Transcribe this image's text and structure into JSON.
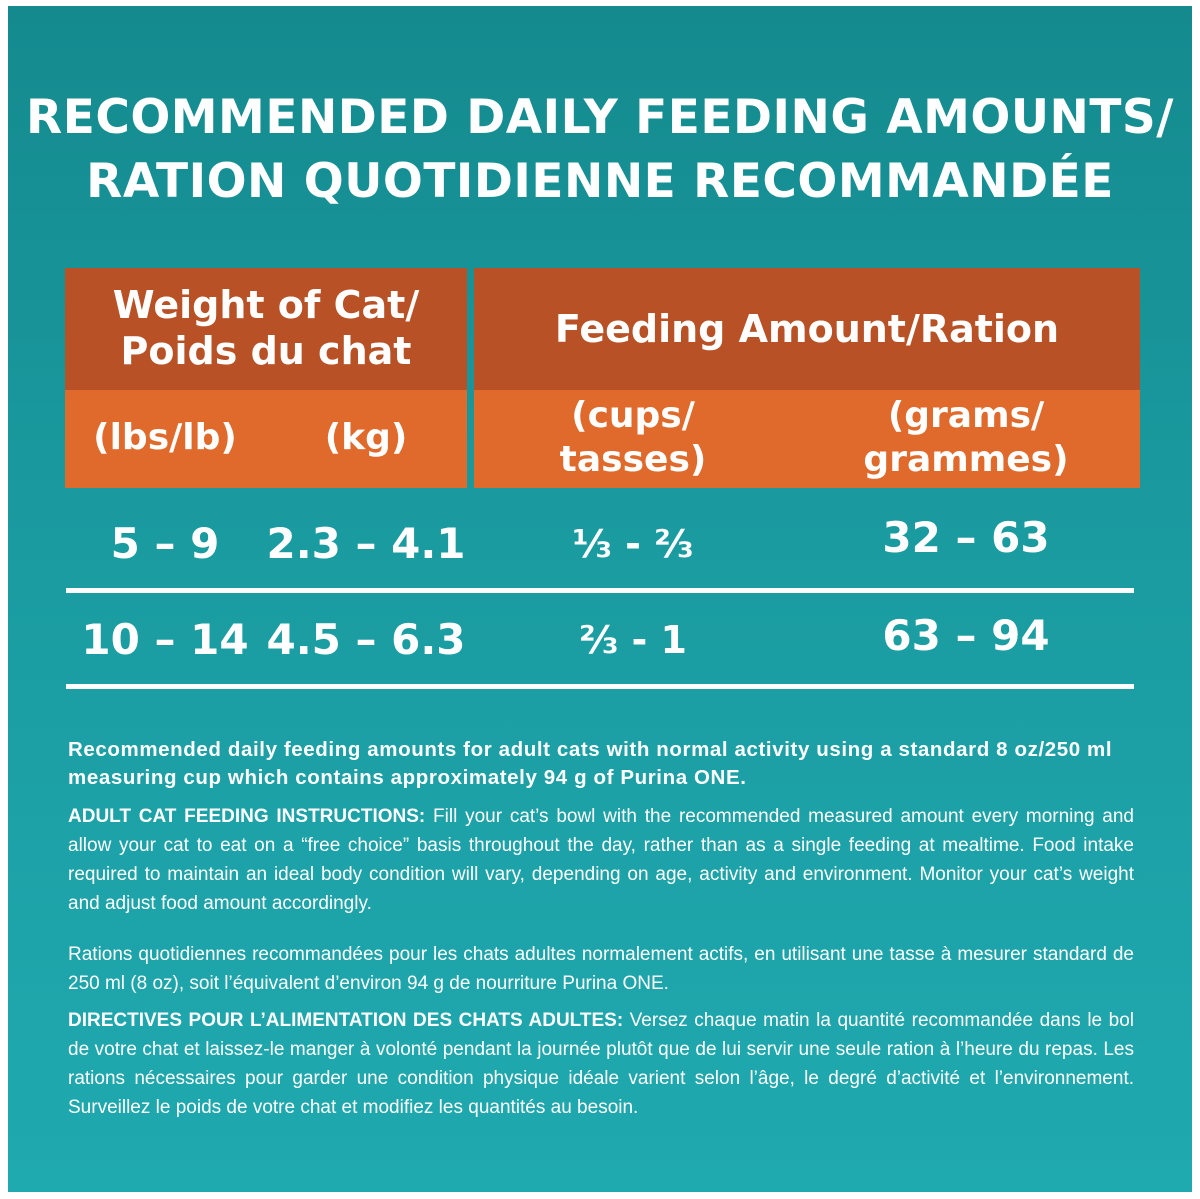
{
  "title": {
    "line1": "RECOMMENDED DAILY FEEDING AMOUNTS/",
    "line2": "RATION QUOTIDIENNE RECOMMANDÉE"
  },
  "table": {
    "weight_header": {
      "line1": "Weight of Cat/",
      "line2": "Poids du chat"
    },
    "feeding_header": "Feeding Amount/Ration",
    "units": {
      "lbs": "(lbs/lb)",
      "kg": "(kg)",
      "cups_line1": "(cups/",
      "cups_line2": "tasses)",
      "grams_line1": "(grams/",
      "grams_line2": "grammes)"
    },
    "rows": [
      {
        "lbs": "5 – 9",
        "kg": "2.3 – 4.1",
        "cups": "⅓ - ⅔",
        "grams": "32 – 63"
      },
      {
        "lbs": "10 – 14",
        "kg": "4.5 – 6.3",
        "cups": "⅔ - 1",
        "grams": "63 – 94"
      }
    ]
  },
  "notes": {
    "en_summary": "Recommended daily feeding amounts for adult cats with normal activity using a standard 8 oz/250 ml measuring cup which contains approximately 94 g of Purina ONE.",
    "en_instr_label": "ADULT CAT FEEDING INSTRUCTIONS:",
    "en_instr_text": " Fill your cat’s bowl with the recommended measured amount every morning and allow your cat to eat on a “free choice” basis throughout the day, rather than as a single feeding at mealtime. Food intake required to maintain an ideal body condition will vary, depending on age, activity and environment. Monitor your cat’s weight and adjust food amount accordingly.",
    "fr_summary": "Rations quotidiennes recommandées pour les chats adultes normalement actifs, en utilisant une tasse à mesurer standard de 250 ml (8 oz), soit l’équivalent d’environ 94 g de nourriture Purina ONE.",
    "fr_instr_label": "DIRECTIVES POUR L’ALIMENTATION DES CHATS ADULTES:",
    "fr_instr_text": " Versez chaque matin la quantité recommandée dans le bol de votre chat et laissez-le manger à volonté pendant la journée plutôt que de lui servir une seule ration à l’heure du repas. Les rations nécessaires pour garder une condition physique idéale varient selon l’âge, le degré d’activité et l’environnement. Surveillez le poids de votre chat et modifiez les quantités au besoin."
  },
  "colors": {
    "background_teal": "#1a9ba0",
    "header_dark_orange": "#b85226",
    "header_light_orange": "#e06a2b",
    "text": "#ffffff"
  }
}
